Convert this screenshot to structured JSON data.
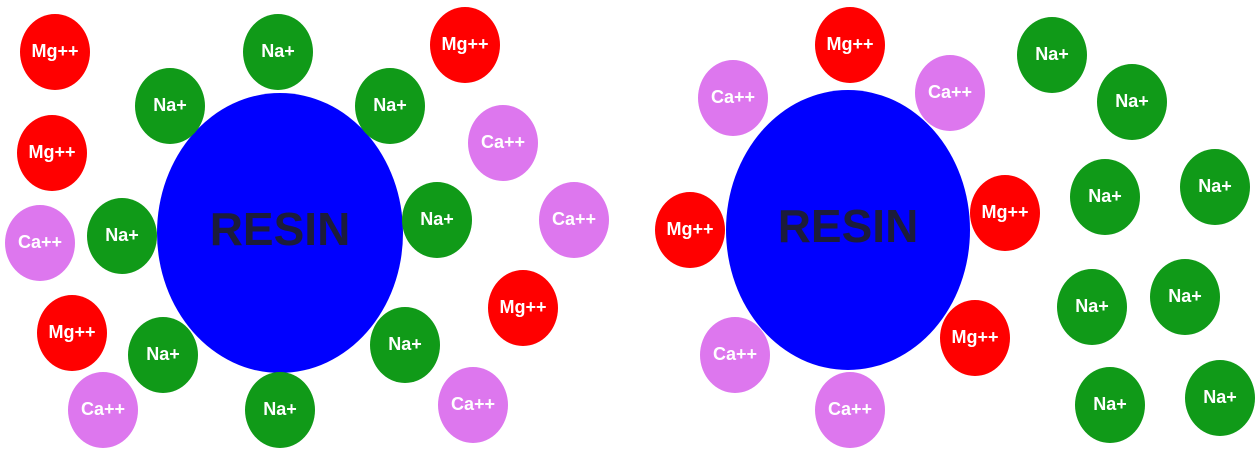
{
  "panels": [
    {
      "resin": "RESIN",
      "ions": [
        "Mg++",
        "Na+",
        "Mg++",
        "Na+",
        "Na+",
        "Mg++",
        "Ca++",
        "Ca++",
        "Na+",
        "Na+",
        "Ca++",
        "Mg++",
        "Na+",
        "Na+",
        "Mg++",
        "Ca++",
        "Na+",
        "Ca++"
      ]
    },
    {
      "resin": "RESIN",
      "ions": [
        "Mg++",
        "Ca++",
        "Ca++",
        "Na+",
        "Na+",
        "Mg++",
        "Mg++",
        "Na+",
        "Na+",
        "Mg++",
        "Ca++",
        "Na+",
        "Na+",
        "Ca++",
        "Na+",
        "Na+"
      ]
    }
  ]
}
